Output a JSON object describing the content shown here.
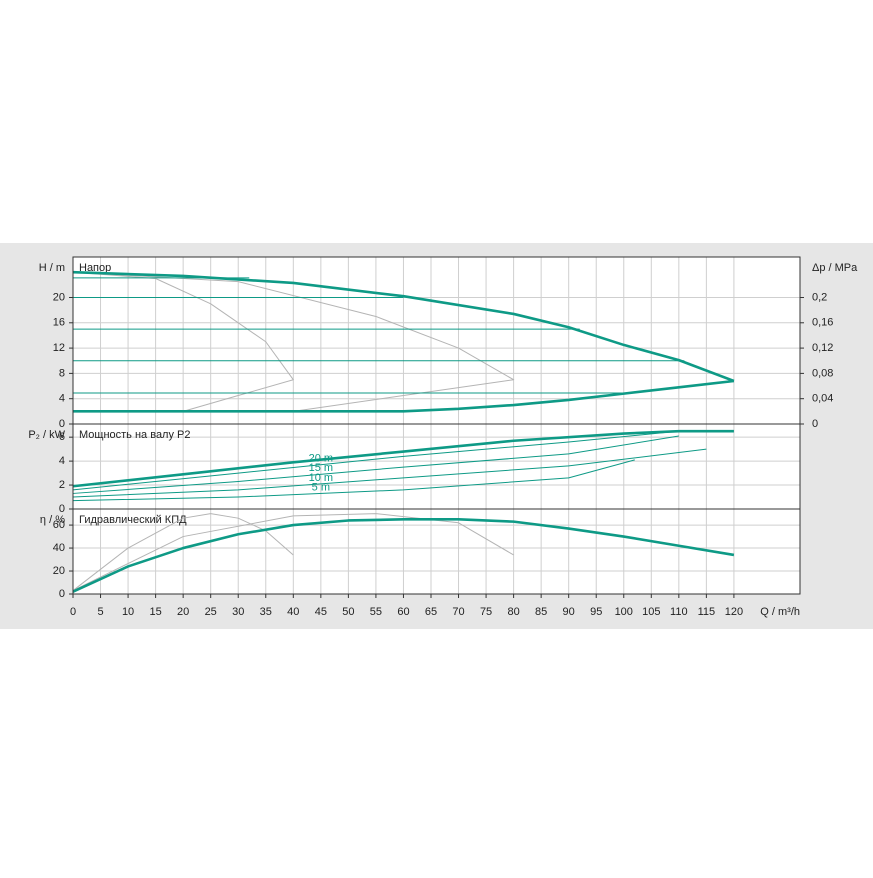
{
  "chart_data": [
    {
      "type": "line",
      "title": "Напор",
      "ylabel": "H / m",
      "y2label": "Δp / MPa",
      "xlim": [
        0,
        132
      ],
      "ylim": [
        0,
        26.4
      ],
      "yticks": [
        0,
        4,
        8,
        12,
        16,
        20
      ],
      "y2lim": [
        0,
        0.264
      ],
      "y2ticks": [
        0,
        {
          "value": 0.04,
          "label": "0,04"
        },
        {
          "value": 0.08,
          "label": "0,08"
        },
        {
          "value": 0.12,
          "label": "0,12"
        },
        {
          "value": 0.16,
          "label": "0,16"
        },
        {
          "value": 0.2,
          "label": "0,2"
        }
      ],
      "grid": true,
      "series": [
        {
          "color": "#b4b4b4",
          "style": "thin",
          "x": [
            0,
            15,
            25,
            35,
            40,
            30,
            20
          ],
          "values": [
            24,
            23,
            19,
            13,
            7,
            4.5,
            2
          ]
        },
        {
          "color": "#b4b4b4",
          "style": "thin",
          "x": [
            0,
            30,
            55,
            70,
            80,
            60,
            40
          ],
          "values": [
            24,
            22.5,
            17,
            12,
            7,
            4.5,
            2
          ]
        },
        {
          "color": "#0e9a86",
          "style": "thin",
          "x": [
            0,
            32
          ],
          "values": [
            23.1,
            23.1
          ]
        },
        {
          "color": "#0e9a86",
          "style": "thin",
          "x": [
            0,
            60
          ],
          "values": [
            20,
            20
          ]
        },
        {
          "color": "#0e9a86",
          "style": "thin",
          "x": [
            0,
            92
          ],
          "values": [
            15,
            15
          ]
        },
        {
          "color": "#0e9a86",
          "style": "thin",
          "x": [
            0,
            111
          ],
          "values": [
            10,
            10
          ]
        },
        {
          "color": "#0e9a86",
          "style": "thin",
          "x": [
            0,
            100
          ],
          "values": [
            4.9,
            4.9
          ]
        },
        {
          "color": "#0e9a86",
          "style": "thick",
          "x": [
            0,
            20,
            40,
            60,
            80,
            90,
            100,
            110,
            120
          ],
          "values": [
            24,
            23.4,
            22.3,
            20.2,
            17.4,
            15.3,
            12.5,
            10.1,
            6.8
          ]
        },
        {
          "color": "#0e9a86",
          "style": "thick",
          "x": [
            0,
            20,
            40,
            60,
            70,
            80,
            90,
            100,
            110,
            120
          ],
          "values": [
            2,
            2,
            2,
            2,
            2.4,
            3,
            3.8,
            4.8,
            5.8,
            6.8
          ]
        }
      ]
    },
    {
      "type": "line",
      "title": "Мощность на валу P2",
      "ylabel": "P₂ / kW",
      "xlim": [
        0,
        132
      ],
      "ylim": [
        0,
        7.1
      ],
      "yticks": [
        0,
        2,
        4,
        6
      ],
      "grid": true,
      "series": [
        {
          "name": "20 m",
          "color": "#0e9a86",
          "style": "thin",
          "x": [
            0,
            30,
            60,
            90,
            110
          ],
          "values": [
            1.6,
            3.0,
            4.4,
            5.6,
            6.5
          ]
        },
        {
          "name": "15 m",
          "color": "#0e9a86",
          "style": "thin",
          "x": [
            0,
            30,
            60,
            90,
            110
          ],
          "values": [
            1.3,
            2.3,
            3.5,
            4.6,
            6.1
          ]
        },
        {
          "name": "10 m",
          "color": "#0e9a86",
          "style": "thin",
          "x": [
            0,
            30,
            60,
            90,
            115
          ],
          "values": [
            1.0,
            1.6,
            2.6,
            3.6,
            5.0
          ]
        },
        {
          "name": "5 m",
          "color": "#0e9a86",
          "style": "thin",
          "x": [
            0,
            30,
            60,
            90,
            102
          ],
          "values": [
            0.7,
            1.0,
            1.6,
            2.6,
            4.1
          ]
        },
        {
          "color": "#0e9a86",
          "style": "thick",
          "x": [
            0,
            20,
            40,
            60,
            80,
            100,
            110,
            120
          ],
          "values": [
            1.9,
            2.9,
            3.9,
            4.8,
            5.7,
            6.3,
            6.5,
            6.5
          ]
        }
      ]
    },
    {
      "type": "line",
      "title": "Гидравлический КПД",
      "ylabel": "η / %",
      "xlabel": "Q / m³/h",
      "xlim": [
        0,
        132
      ],
      "ylim": [
        0,
        74
      ],
      "yticks": [
        0,
        20,
        40,
        60
      ],
      "grid": true,
      "xticks": [
        0,
        5,
        10,
        15,
        20,
        25,
        30,
        35,
        40,
        45,
        50,
        55,
        60,
        65,
        70,
        75,
        80,
        85,
        90,
        95,
        100,
        105,
        110,
        115,
        120
      ],
      "series": [
        {
          "color": "#b4b4b4",
          "style": "thin",
          "x": [
            0,
            10,
            20,
            25,
            30,
            35,
            40
          ],
          "values": [
            3,
            40,
            66,
            70,
            66,
            55,
            34
          ]
        },
        {
          "color": "#b4b4b4",
          "style": "thin",
          "x": [
            0,
            20,
            40,
            55,
            70,
            80
          ],
          "values": [
            3,
            50,
            68,
            70,
            62,
            34
          ]
        },
        {
          "color": "#0e9a86",
          "style": "thick",
          "x": [
            0,
            5,
            10,
            20,
            30,
            40,
            50,
            60,
            70,
            80,
            90,
            100,
            110,
            120
          ],
          "values": [
            2,
            13,
            24,
            40,
            52,
            60,
            64,
            65,
            65,
            63,
            57,
            50,
            42,
            34
          ]
        }
      ]
    }
  ]
}
